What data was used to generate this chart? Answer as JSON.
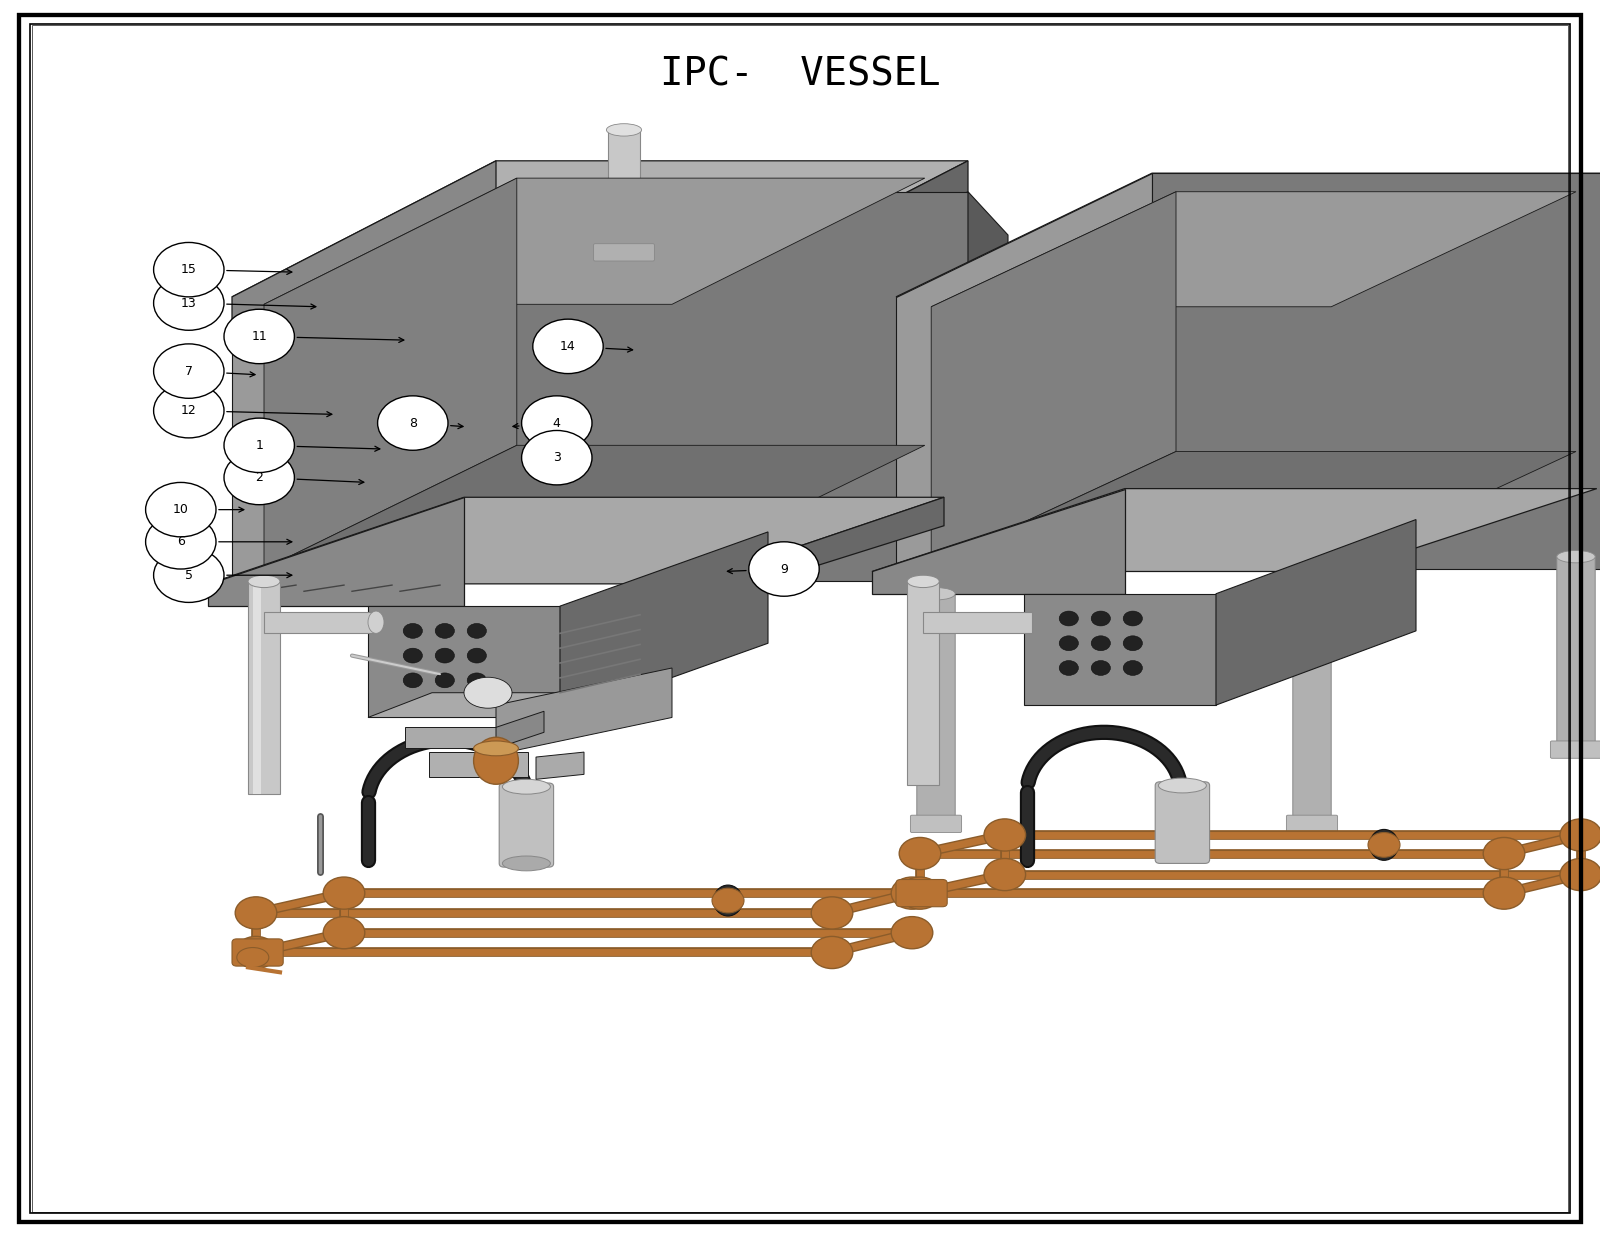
{
  "title": "IPC-  VESSEL",
  "title_fontsize": 28,
  "title_fontfamily": "monospace",
  "border_color": "#000000",
  "border_linewidth_outer": 3,
  "border_linewidth_inner": 1.5,
  "background_color": "#ffffff",
  "fig_width": 16.0,
  "fig_height": 12.37,
  "callout_data": [
    [
      5,
      0.118,
      0.535,
      0.185,
      0.535
    ],
    [
      6,
      0.113,
      0.562,
      0.185,
      0.562
    ],
    [
      10,
      0.113,
      0.588,
      0.155,
      0.588
    ],
    [
      2,
      0.162,
      0.614,
      0.23,
      0.61
    ],
    [
      1,
      0.162,
      0.64,
      0.24,
      0.637
    ],
    [
      12,
      0.118,
      0.668,
      0.21,
      0.665
    ],
    [
      7,
      0.118,
      0.7,
      0.162,
      0.697
    ],
    [
      11,
      0.162,
      0.728,
      0.255,
      0.725
    ],
    [
      13,
      0.118,
      0.755,
      0.2,
      0.752
    ],
    [
      15,
      0.118,
      0.782,
      0.185,
      0.78
    ],
    [
      8,
      0.258,
      0.658,
      0.292,
      0.655
    ],
    [
      4,
      0.348,
      0.658,
      0.318,
      0.655
    ],
    [
      3,
      0.348,
      0.63,
      0.355,
      0.628
    ],
    [
      14,
      0.355,
      0.72,
      0.398,
      0.717
    ],
    [
      9,
      0.49,
      0.54,
      0.452,
      0.538
    ]
  ],
  "gray_vessel_top_left": "#c8c8c8",
  "gray_vessel_side": "#888888",
  "gray_vessel_front": "#aaaaaa",
  "gray_dark": "#555555",
  "gray_med": "#888888",
  "gray_light": "#b8b8b8",
  "silver": "#c0c0c0",
  "black": "#1a1a1a",
  "copper": "#b87333",
  "copper_dark": "#8b5c2a",
  "white": "#ffffff"
}
